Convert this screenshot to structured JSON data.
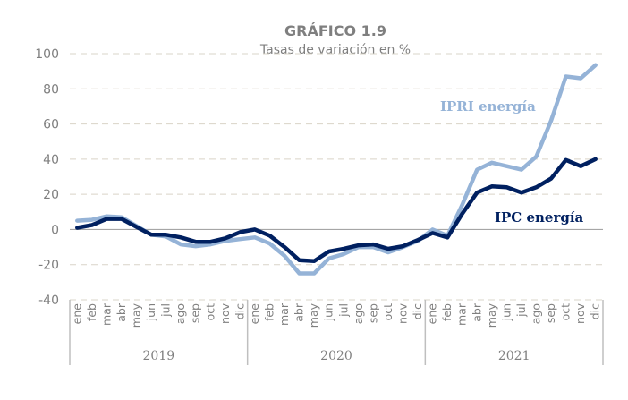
{
  "chart_data": {
    "type": "line",
    "title": "GRÁFICO 1.9",
    "subtitle": "Tasas de variación en %",
    "xlabel": "",
    "ylabel": "",
    "ylim": [
      -40,
      100
    ],
    "yticks": [
      100,
      80,
      60,
      40,
      20,
      0,
      -20,
      -40
    ],
    "grid": true,
    "legend": "inline-labels",
    "years": [
      "2019",
      "2020",
      "2021"
    ],
    "months": [
      "ene",
      "feb",
      "mar",
      "abr",
      "may",
      "jun",
      "jul",
      "ago",
      "sep",
      "oct",
      "nov",
      "dic"
    ],
    "series": [
      {
        "name": "IPRI energía",
        "color": "#95b3d7",
        "values": [
          5,
          5.5,
          7.5,
          7,
          2,
          -3,
          -4,
          -8.5,
          -9.5,
          -8.5,
          -6.5,
          -5.5,
          -4.5,
          -8,
          -15,
          -25,
          -25,
          -16.5,
          -14,
          -10,
          -10,
          -13,
          -10,
          -6.5,
          0,
          -3.5,
          14,
          34,
          38,
          36,
          34,
          41.5,
          62,
          87,
          86,
          93.5
        ]
      },
      {
        "name": "IPC energía",
        "color": "#002060",
        "values": [
          1,
          2.5,
          6,
          6,
          1.5,
          -3,
          -3,
          -4.5,
          -7,
          -7,
          -5,
          -1.5,
          0,
          -3.5,
          -10,
          -17.5,
          -18,
          -12.5,
          -11,
          -9,
          -8.5,
          -11,
          -9.5,
          -6,
          -2,
          -4.5,
          9,
          21,
          24.5,
          24,
          21,
          24,
          29,
          39.5,
          36,
          40
        ]
      }
    ]
  }
}
